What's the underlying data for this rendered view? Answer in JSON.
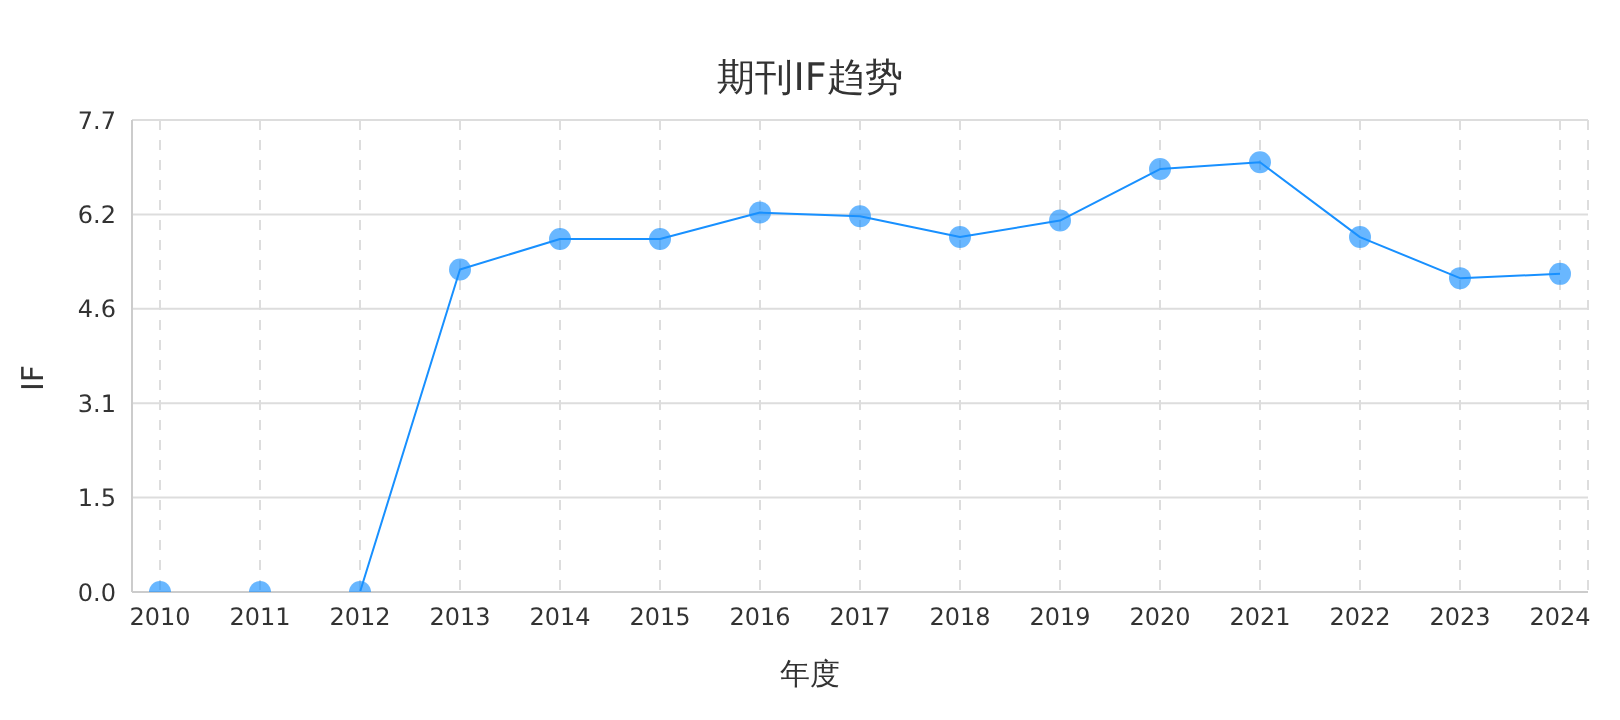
{
  "chart_data": {
    "type": "line",
    "title": "期刊IF趋势",
    "xlabel": "年度",
    "ylabel": "IF",
    "categories": [
      "2010",
      "2011",
      "2012",
      "2013",
      "2014",
      "2015",
      "2016",
      "2017",
      "2018",
      "2019",
      "2020",
      "2021",
      "2022",
      "2023",
      "2024"
    ],
    "series": [
      {
        "color": "#1890ff",
        "values": [
          0,
          0,
          0,
          5.26,
          5.76,
          5.76,
          6.19,
          6.13,
          5.79,
          6.06,
          6.9,
          7.01,
          5.79,
          5.12,
          5.19
        ]
      }
    ],
    "ylim": [
      0,
      7.7
    ],
    "yticks": [
      {
        "value": 0,
        "label": "0.0"
      },
      {
        "value": 1.54,
        "label": "1.5"
      },
      {
        "value": 3.08,
        "label": "3.1"
      },
      {
        "value": 4.62,
        "label": "4.6"
      },
      {
        "value": 6.16,
        "label": "6.2"
      },
      7.7
    ],
    "grid": true,
    "marker": "circle",
    "line_style": "solid"
  }
}
